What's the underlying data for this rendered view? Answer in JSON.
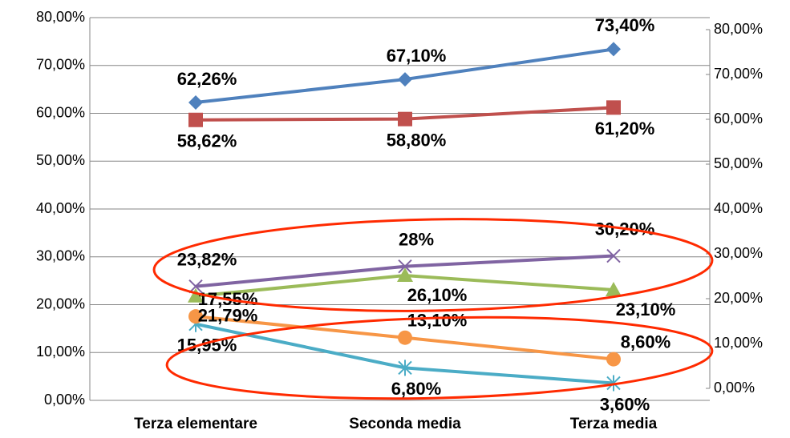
{
  "chart_data": {
    "type": "line",
    "categories": [
      "Terza elementare",
      "Seconda media",
      "Terza media"
    ],
    "series": [
      {
        "color": "#4f81bd",
        "marker": "diamond",
        "values": [
          62.26,
          67.1,
          73.4
        ],
        "value_labels": [
          "62,26%",
          "67,10%",
          "73,40%"
        ]
      },
      {
        "color": "#c0504d",
        "marker": "square",
        "values": [
          58.62,
          58.8,
          61.2
        ],
        "value_labels": [
          "58,62%",
          "58,80%",
          "61,20%"
        ]
      },
      {
        "color": "#9bbb59",
        "marker": "triangle",
        "values": [
          21.79,
          26.1,
          23.1
        ],
        "value_labels": [
          "21,79%",
          "26,10%",
          "23,10%"
        ]
      },
      {
        "color": "#8064a2",
        "marker": "x",
        "values": [
          23.82,
          28,
          30.2
        ],
        "value_labels": [
          "23,82%",
          "28%",
          "30,20%"
        ]
      },
      {
        "color": "#4bacc6",
        "marker": "star",
        "values": [
          15.95,
          6.8,
          3.6
        ],
        "value_labels": [
          "15,95%",
          "6,80%",
          "3,60%"
        ]
      },
      {
        "color": "#f79646",
        "marker": "circle",
        "values": [
          17.55,
          13.1,
          8.6
        ],
        "value_labels": [
          "17,55%",
          "13,10%",
          "8,60%"
        ]
      }
    ],
    "ylim": [
      0,
      80
    ],
    "yticks": [
      {
        "value": 0,
        "label": "0,00%"
      },
      {
        "value": 10,
        "label": "10,00%"
      },
      {
        "value": 20,
        "label": "20,00%"
      },
      {
        "value": 30,
        "label": "30,00%"
      },
      {
        "value": 40,
        "label": "40,00%"
      },
      {
        "value": 50,
        "label": "50,00%"
      },
      {
        "value": 60,
        "label": "60,00%"
      },
      {
        "value": 70,
        "label": "70,00%"
      },
      {
        "value": 80,
        "label": "80,00%"
      }
    ],
    "y2lim": [
      0,
      80
    ],
    "y2ticks": [
      {
        "value": 0,
        "label": "0,00%"
      },
      {
        "value": 10,
        "label": "10,00%"
      },
      {
        "value": 20,
        "label": "20,00%"
      },
      {
        "value": 30,
        "label": "30,00%"
      },
      {
        "value": 40,
        "label": "40,00%"
      },
      {
        "value": 50,
        "label": "50,00%"
      },
      {
        "value": 60,
        "label": "60,00%"
      },
      {
        "value": 70,
        "label": "70,00%"
      },
      {
        "value": 80,
        "label": "80,00%"
      }
    ],
    "grid": true
  }
}
